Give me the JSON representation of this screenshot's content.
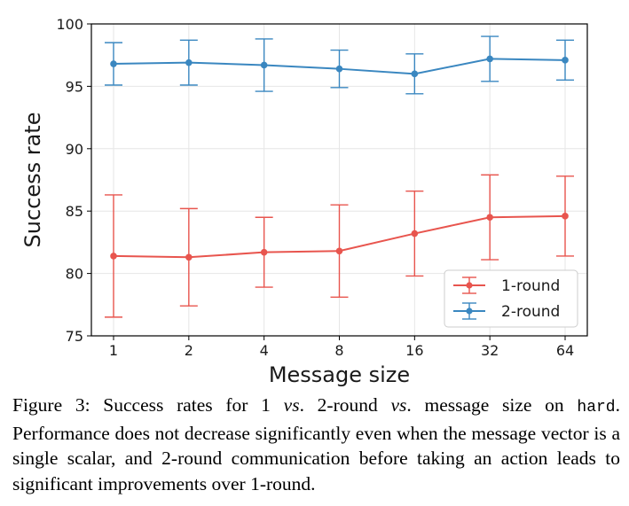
{
  "chart_data": {
    "type": "line",
    "xlabel": "Message size",
    "ylabel": "Success rate",
    "categories": [
      "1",
      "2",
      "4",
      "8",
      "16",
      "32",
      "64"
    ],
    "ylim": [
      75,
      100
    ],
    "yticks": [
      "75",
      "80",
      "85",
      "90",
      "95",
      "100"
    ],
    "grid": true,
    "legend": "lower-right",
    "series": [
      {
        "name": "1-round",
        "color": "#e8554e",
        "values": [
          81.4,
          81.3,
          81.7,
          81.8,
          83.2,
          84.5,
          84.6
        ],
        "err_low": [
          76.5,
          77.4,
          78.9,
          78.1,
          79.8,
          81.1,
          81.4
        ],
        "err_high": [
          86.3,
          85.2,
          84.5,
          85.5,
          86.6,
          87.9,
          87.8
        ]
      },
      {
        "name": "2-round",
        "color": "#3a87c0",
        "values": [
          96.8,
          96.9,
          96.7,
          96.4,
          96.0,
          97.2,
          97.1
        ],
        "err_low": [
          95.1,
          95.1,
          94.6,
          94.9,
          94.4,
          95.4,
          95.5
        ],
        "err_high": [
          98.5,
          98.7,
          98.8,
          97.9,
          97.6,
          99.0,
          98.7
        ]
      }
    ]
  },
  "caption": {
    "label": "Figure 3:",
    "t1": " Success rates for 1 ",
    "vs1": "vs",
    "t2": ". 2-round ",
    "vs2": "vs",
    "t3": ". message size on ",
    "code": "hard",
    "t4": ". Performance does not decrease significantly even when the message vector is a single scalar, and 2-round communication before taking an action leads to significant improvements over 1-round."
  }
}
